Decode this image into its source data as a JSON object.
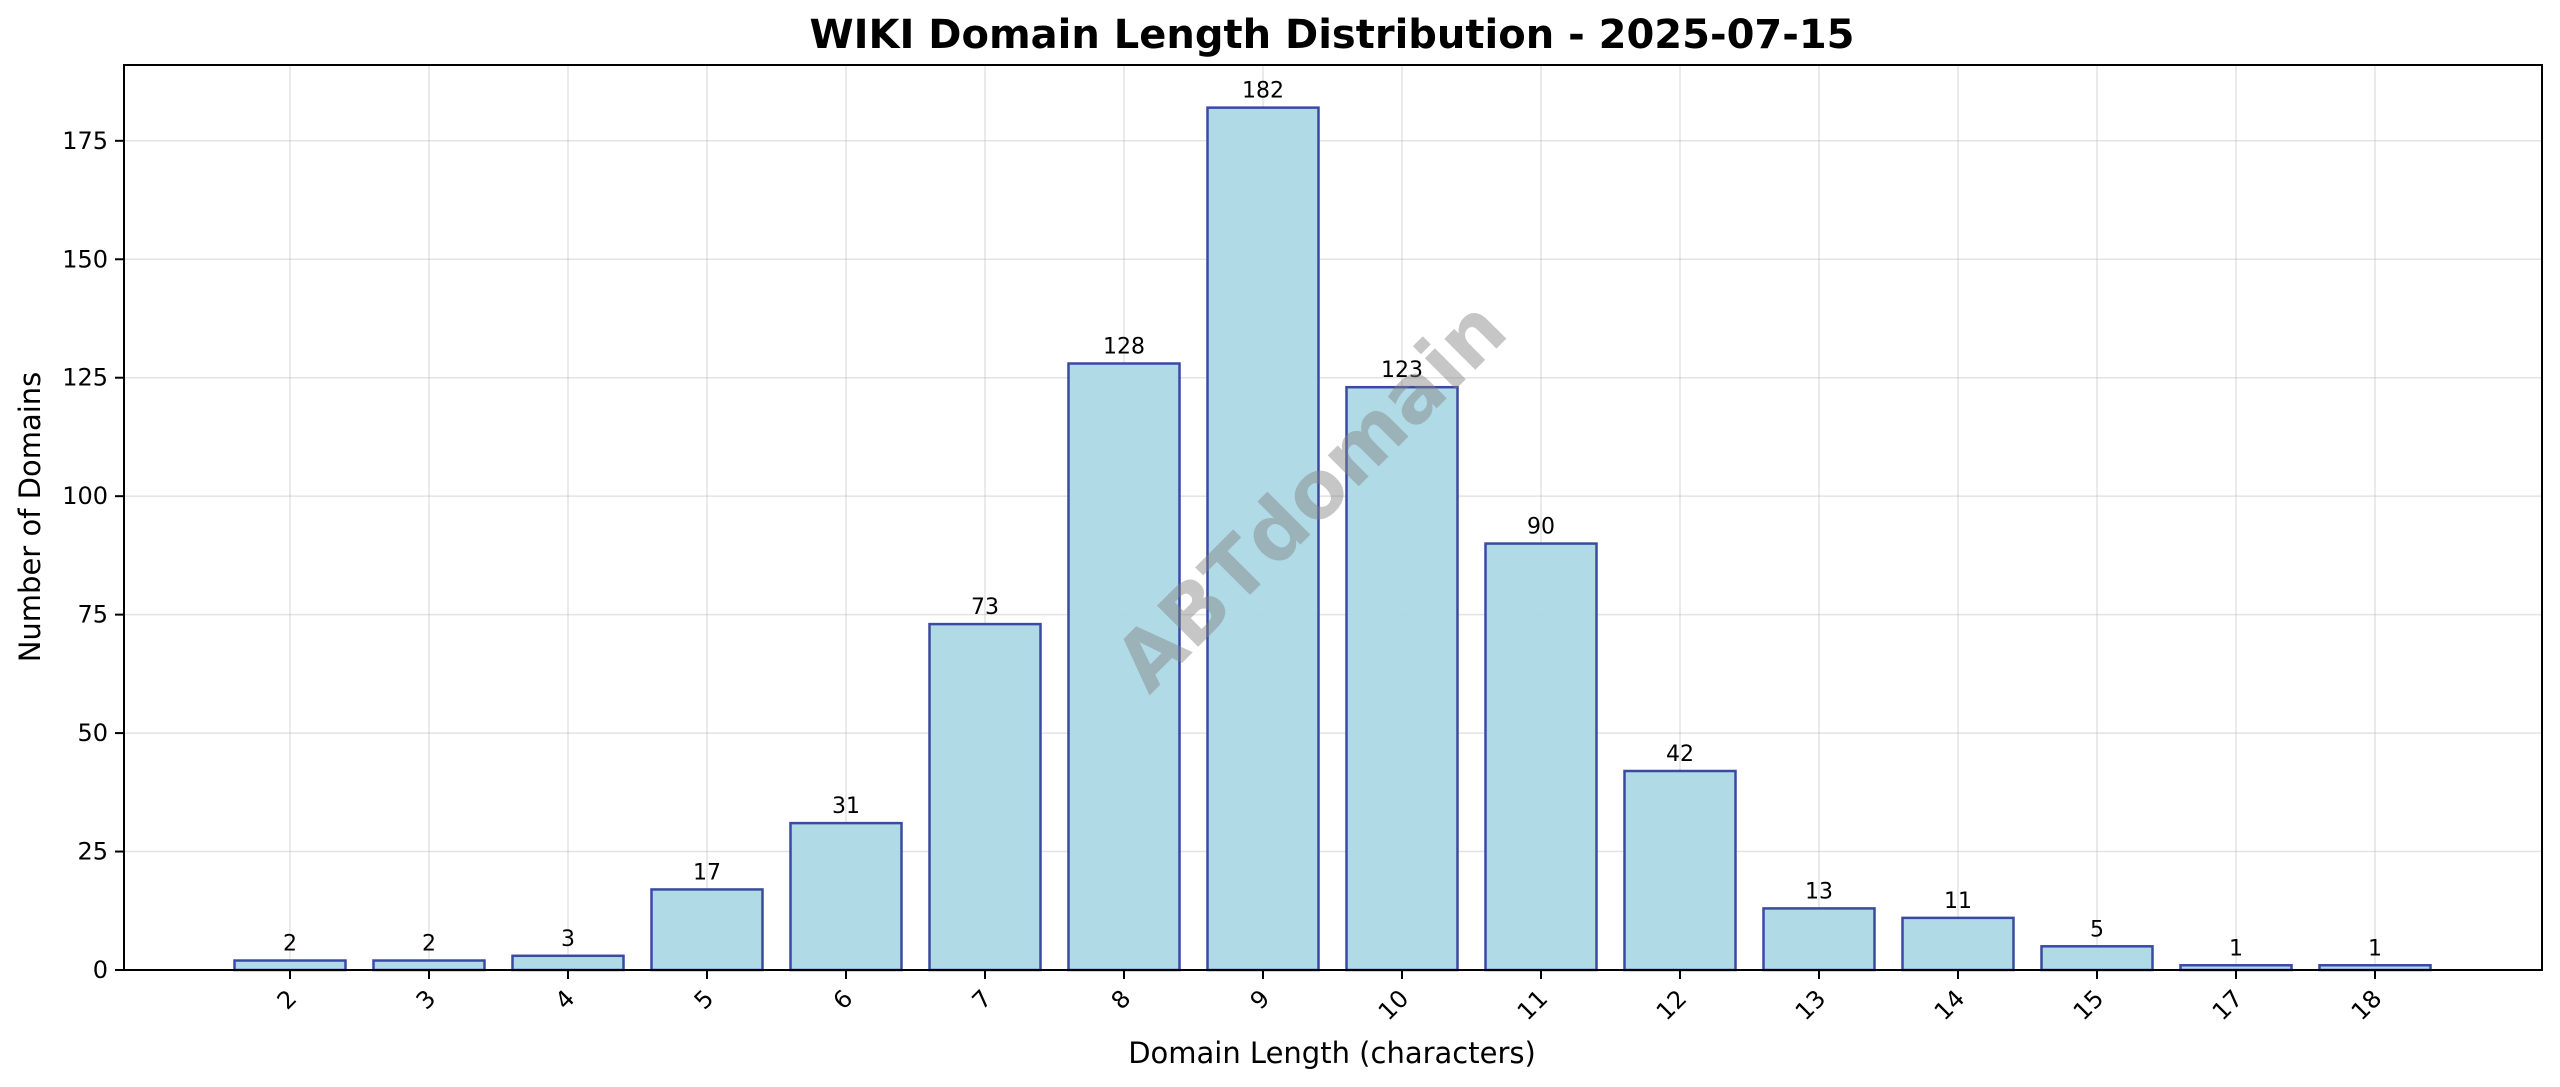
{
  "chart_data": {
    "type": "bar",
    "title": "WIKI Domain Length Distribution - 2025-07-15",
    "xlabel": "Domain Length (characters)",
    "ylabel": "Number of Domains",
    "categories": [
      "2",
      "3",
      "4",
      "5",
      "6",
      "7",
      "8",
      "9",
      "10",
      "11",
      "12",
      "13",
      "14",
      "15",
      "17",
      "18"
    ],
    "values": [
      2,
      2,
      3,
      17,
      31,
      73,
      128,
      182,
      123,
      90,
      42,
      13,
      11,
      5,
      1,
      1
    ],
    "ylim": [
      0,
      191
    ],
    "yticks": [
      0,
      25,
      50,
      75,
      100,
      125,
      150,
      175
    ],
    "grid": true,
    "bar_color": "#add8e6",
    "bar_edge_color": "#3a4aa3",
    "watermark": "ABTdomain"
  }
}
